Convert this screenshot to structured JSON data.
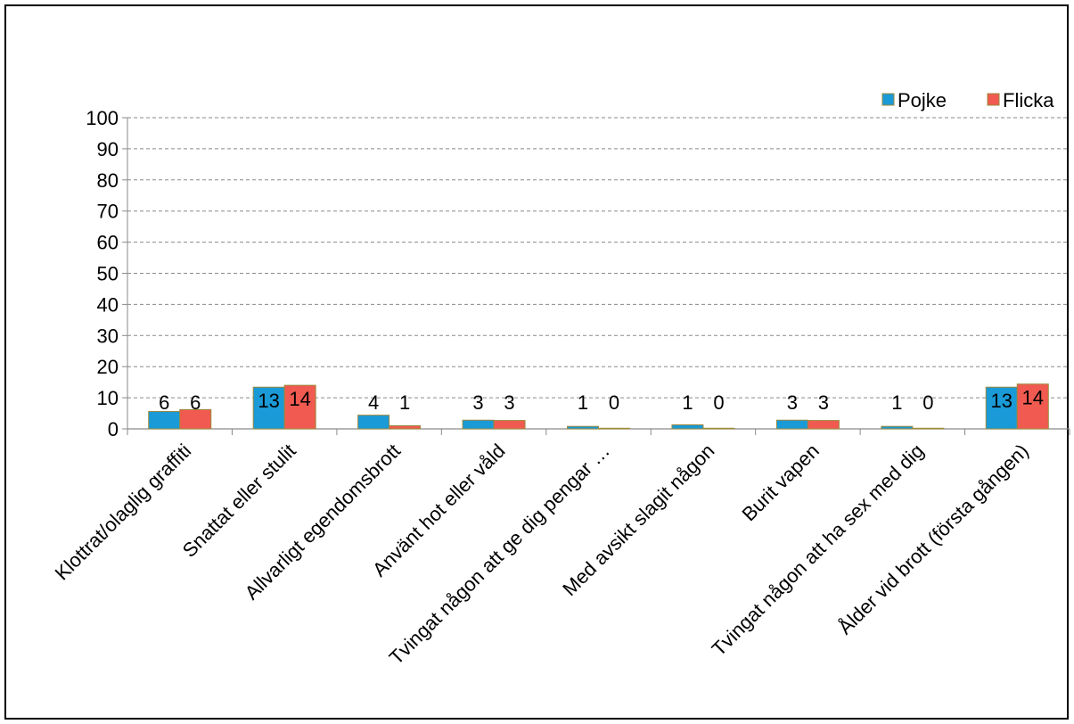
{
  "chart_data": {
    "type": "bar",
    "title": "",
    "xlabel": "",
    "ylabel": "",
    "ylim": [
      0,
      100
    ],
    "yticks": [
      0,
      10,
      20,
      30,
      40,
      50,
      60,
      70,
      80,
      90,
      100
    ],
    "grid": true,
    "legend_position": "top-right",
    "categories": [
      "Klottrat/olaglig graffiti",
      "Snattat eller stulit",
      "Allvarligt egendomsbrott",
      "Använt hot eller våld",
      "Tvingat någon att ge dig pengar …",
      "Med avsikt slagit någon",
      "Burit vapen",
      "Tvingat någon att ha sex med dig",
      "Ålder vid brott (första gången)"
    ],
    "series": [
      {
        "name": "Pojke",
        "color": "#1a9ad6",
        "values": [
          5.6,
          13.4,
          4.4,
          2.8,
          0.8,
          1.3,
          2.8,
          0.8,
          13.4
        ],
        "labels": [
          "6",
          "13",
          "4",
          "3",
          "1",
          "1",
          "3",
          "1",
          "13"
        ]
      },
      {
        "name": "Flicka",
        "color": "#f05a50",
        "values": [
          6.2,
          14.0,
          1.0,
          2.7,
          0.2,
          0.2,
          2.7,
          0.2,
          14.4
        ],
        "labels": [
          "6",
          "14",
          "1",
          "3",
          "0",
          "0",
          "3",
          "0",
          "14"
        ]
      }
    ]
  }
}
